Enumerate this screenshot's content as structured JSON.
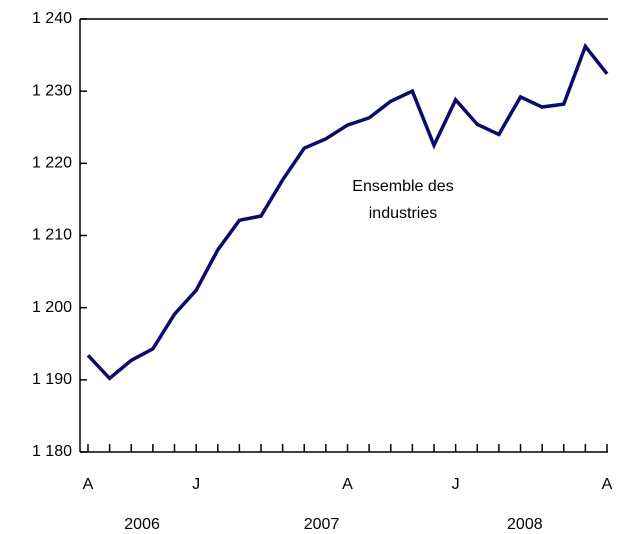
{
  "chart_data": {
    "type": "line",
    "annotation_lines": [
      "Ensemble des",
      "industries"
    ],
    "categories": [
      "A",
      null,
      null,
      null,
      null,
      "J",
      null,
      null,
      null,
      null,
      null,
      null,
      "A",
      null,
      null,
      null,
      null,
      "J",
      null,
      null,
      null,
      null,
      null,
      null,
      "A"
    ],
    "years": [
      "2006",
      "2007",
      "2008"
    ],
    "series": [
      {
        "color": "#0b0b6b",
        "values": [
          1193.4,
          1190.2,
          1192.7,
          1194.3,
          1199.1,
          1202.4,
          1208.0,
          1212.1,
          1212.7,
          1217.7,
          1222.1,
          1223.4,
          1225.3,
          1226.3,
          1228.6,
          1230.0,
          1222.5,
          1228.8,
          1225.4,
          1224.0,
          1229.2,
          1227.8,
          1228.2,
          1236.2,
          1232.4
        ]
      }
    ],
    "ylim": [
      1180,
      1240
    ],
    "yticks": [
      {
        "value": 1180,
        "label": "1 180"
      },
      {
        "value": 1190,
        "label": "1 190"
      },
      {
        "value": 1200,
        "label": "1 200"
      },
      {
        "value": 1210,
        "label": "1 210"
      },
      {
        "value": 1220,
        "label": "1 220"
      },
      {
        "value": 1230,
        "label": "1 230"
      },
      {
        "value": 1240,
        "label": "1 240"
      }
    ]
  }
}
